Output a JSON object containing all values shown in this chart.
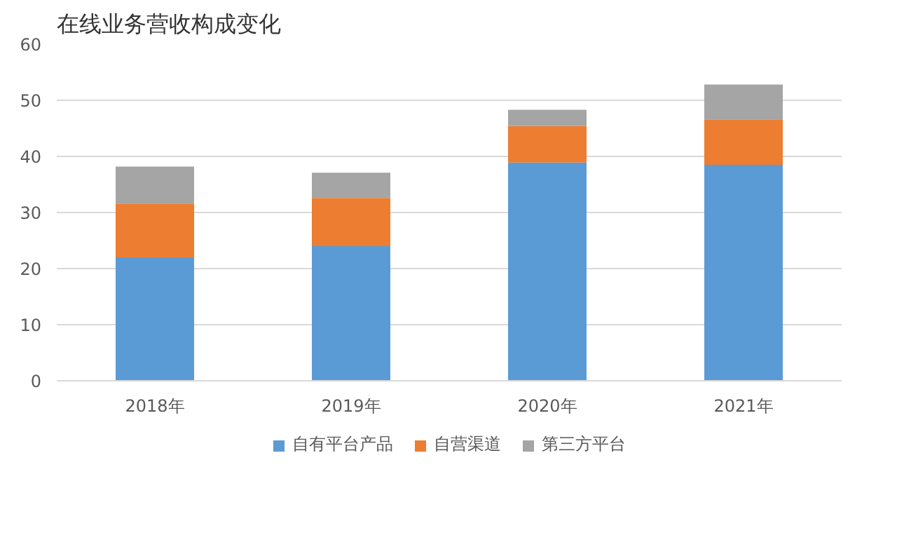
{
  "chart_data": {
    "type": "bar",
    "title": "在线业务营收构成变化",
    "stacked": true,
    "categories": [
      "2018年",
      "2019年",
      "2020年",
      "2021年"
    ],
    "series": [
      {
        "name": "自有平台产品",
        "color": "#5b9bd5",
        "values": [
          22,
          24,
          38.9,
          38.5
        ]
      },
      {
        "name": "自营渠道",
        "color": "#ed7d31",
        "values": [
          9.6,
          8.6,
          6.5,
          8.1
        ]
      },
      {
        "name": "第三方平台",
        "color": "#a5a5a5",
        "values": [
          6.6,
          4.5,
          2.9,
          6.2
        ]
      }
    ],
    "ylim": [
      0,
      60
    ],
    "yticks": [
      0,
      10,
      20,
      30,
      40,
      50,
      60
    ],
    "grid": "y",
    "legend": "bottom"
  }
}
